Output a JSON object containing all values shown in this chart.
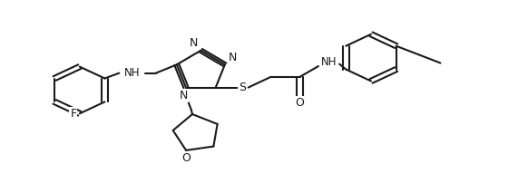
{
  "background_color": "#ffffff",
  "line_color": "#1a1a1a",
  "line_width": 1.5,
  "figsize": [
    5.82,
    2.13
  ],
  "dpi": 100,
  "xlim": [
    0,
    10
  ],
  "ylim": [
    -1.5,
    3.0
  ]
}
